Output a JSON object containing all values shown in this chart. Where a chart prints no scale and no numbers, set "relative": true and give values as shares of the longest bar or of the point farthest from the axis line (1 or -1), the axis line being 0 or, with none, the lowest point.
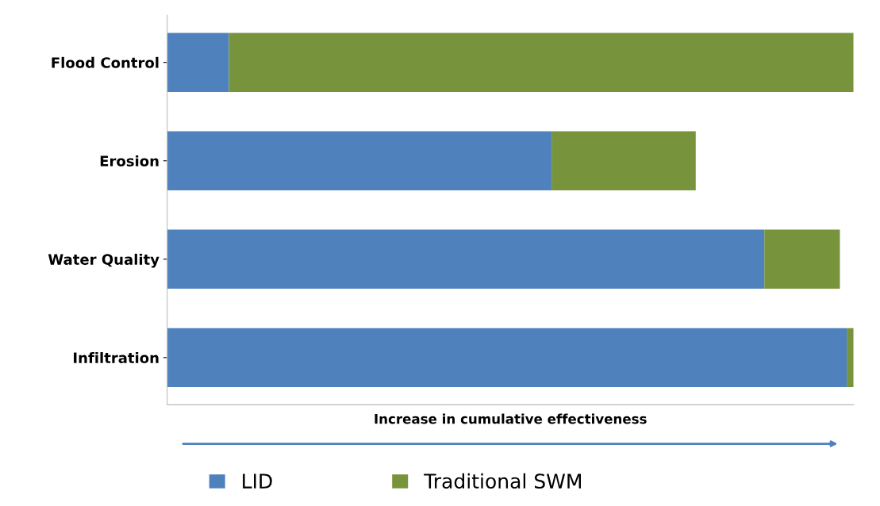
{
  "chart_data": {
    "type": "bar",
    "orientation": "horizontal",
    "stacked": true,
    "relative": true,
    "xlabel": "Increase in cumulative effectiveness",
    "categories": [
      "Flood Control",
      "Erosion",
      "Water Quality",
      "Infiltration"
    ],
    "series": [
      {
        "name": "LID",
        "color": "#4f81bd",
        "values": [
          0.09,
          0.56,
          0.87,
          0.99
        ]
      },
      {
        "name": "Traditional SWM",
        "color": "#77933c",
        "values": [
          0.91,
          0.21,
          0.11,
          0.01
        ]
      }
    ],
    "legend": "bottom",
    "tick_labels": "y"
  }
}
